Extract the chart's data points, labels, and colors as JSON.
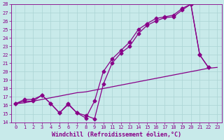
{
  "xlabel": "Windchill (Refroidissement éolien,°C)",
  "bg_color": "#c8eaea",
  "grid_color": "#aad4d4",
  "line_color": "#880088",
  "xlim": [
    -0.5,
    23.5
  ],
  "ylim": [
    14,
    28
  ],
  "xticks": [
    0,
    1,
    2,
    3,
    4,
    5,
    6,
    7,
    8,
    9,
    10,
    11,
    12,
    13,
    14,
    15,
    16,
    17,
    18,
    19,
    20,
    21,
    22,
    23
  ],
  "yticks": [
    14,
    15,
    16,
    17,
    18,
    19,
    20,
    21,
    22,
    23,
    24,
    25,
    26,
    27,
    28
  ],
  "line1_x": [
    0,
    1,
    2,
    3,
    4,
    5,
    6,
    7,
    8,
    9,
    10,
    11,
    12,
    13,
    14,
    15,
    16,
    17,
    18,
    19,
    20,
    21,
    22,
    23
  ],
  "line1_y": [
    16.2,
    16.3,
    16.5,
    16.7,
    16.9,
    17.1,
    17.3,
    17.5,
    17.6,
    17.8,
    18.0,
    18.2,
    18.4,
    18.6,
    18.8,
    19.0,
    19.2,
    19.4,
    19.6,
    19.8,
    20.0,
    20.2,
    20.4,
    20.5
  ],
  "line2_x": [
    0,
    1,
    2,
    3,
    4,
    5,
    6,
    7,
    8,
    9,
    10,
    11,
    12,
    13,
    14,
    15,
    16,
    17,
    18,
    19,
    20,
    21,
    22
  ],
  "line2_y": [
    16.2,
    16.7,
    16.7,
    17.2,
    16.2,
    15.1,
    16.1,
    15.1,
    14.5,
    16.5,
    20.0,
    21.5,
    22.5,
    23.5,
    25.0,
    25.7,
    26.3,
    26.5,
    26.7,
    27.5,
    28.0,
    22.0,
    20.5
  ],
  "line3_x": [
    0,
    1,
    2,
    3,
    4,
    5,
    6,
    7,
    8,
    9,
    10,
    11,
    12,
    13,
    14,
    15,
    16,
    17,
    18,
    19,
    20,
    21,
    22
  ],
  "line3_y": [
    16.2,
    16.5,
    16.5,
    17.2,
    16.2,
    15.1,
    16.2,
    15.1,
    14.8,
    14.4,
    18.5,
    21.0,
    22.2,
    23.0,
    24.5,
    25.5,
    26.0,
    26.4,
    26.5,
    27.3,
    28.0,
    22.0,
    20.5
  ],
  "markersize": 2.5,
  "linewidth": 0.9,
  "tick_fontsize": 5,
  "label_fontsize": 6
}
